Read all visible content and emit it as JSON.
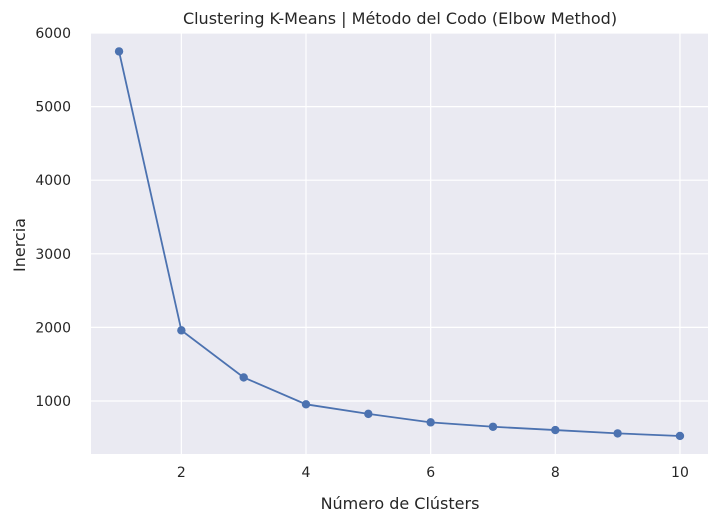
{
  "chart_data": {
    "type": "line",
    "title": "Clustering K-Means | Método del Codo (Elbow Method)",
    "xlabel": "Número de Clústers",
    "ylabel": "Inercia",
    "x": [
      1,
      2,
      3,
      4,
      5,
      6,
      7,
      8,
      9,
      10
    ],
    "series": [
      {
        "name": "Inercia",
        "values": [
          5750,
          1960,
          1320,
          955,
          825,
          710,
          650,
          605,
          560,
          525
        ]
      }
    ],
    "xticks": [
      2,
      4,
      6,
      8,
      10
    ],
    "yticks": [
      1000,
      2000,
      3000,
      4000,
      5000,
      6000
    ],
    "xlim": [
      0.55,
      10.45
    ],
    "ylim": [
      280,
      6000
    ],
    "grid": true,
    "colors": {
      "background": "#EAEAF2",
      "grid": "#FFFFFF",
      "line": "#4C72B0",
      "text": "#262626"
    }
  }
}
